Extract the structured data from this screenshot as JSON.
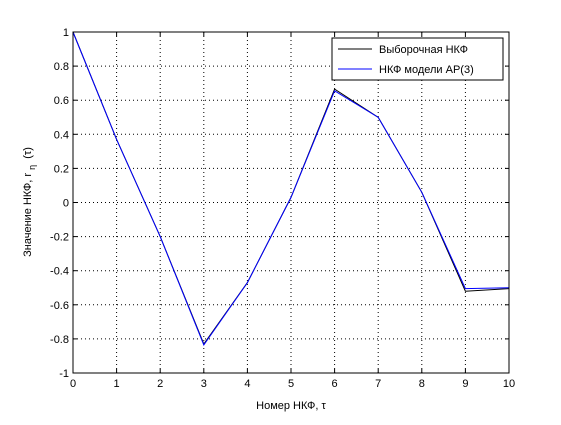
{
  "chart_data": {
    "type": "line",
    "xlabel": "Номер НКФ, τ",
    "ylabel": {
      "main": "Значение НКФ, r",
      "subscript": "η",
      "suffix": "(τ)"
    },
    "xlim": [
      0,
      10
    ],
    "ylim": [
      -1,
      1
    ],
    "xticks": [
      "0",
      "1",
      "2",
      "3",
      "4",
      "5",
      "6",
      "7",
      "8",
      "9",
      "10"
    ],
    "yticks": [
      "-1",
      "-0.8",
      "-0.6",
      "-0.4",
      "-0.2",
      "0",
      "0.2",
      "0.4",
      "0.6",
      "0.8",
      "1"
    ],
    "grid": true,
    "legend_position": "top-right",
    "x": [
      0,
      1,
      2,
      3,
      4,
      5,
      6,
      7,
      8,
      9,
      10
    ],
    "series": [
      {
        "name": "Выборочная НКФ",
        "color": "#000000",
        "values": [
          1.0,
          0.37,
          -0.2,
          -0.83,
          -0.47,
          0.03,
          0.665,
          0.5,
          0.06,
          -0.52,
          -0.505
        ]
      },
      {
        "name": "НКФ модели АР(3)",
        "color": "#0000ff",
        "values": [
          1.0,
          0.37,
          -0.2,
          -0.835,
          -0.47,
          0.03,
          0.655,
          0.5,
          0.06,
          -0.505,
          -0.5
        ]
      }
    ]
  }
}
